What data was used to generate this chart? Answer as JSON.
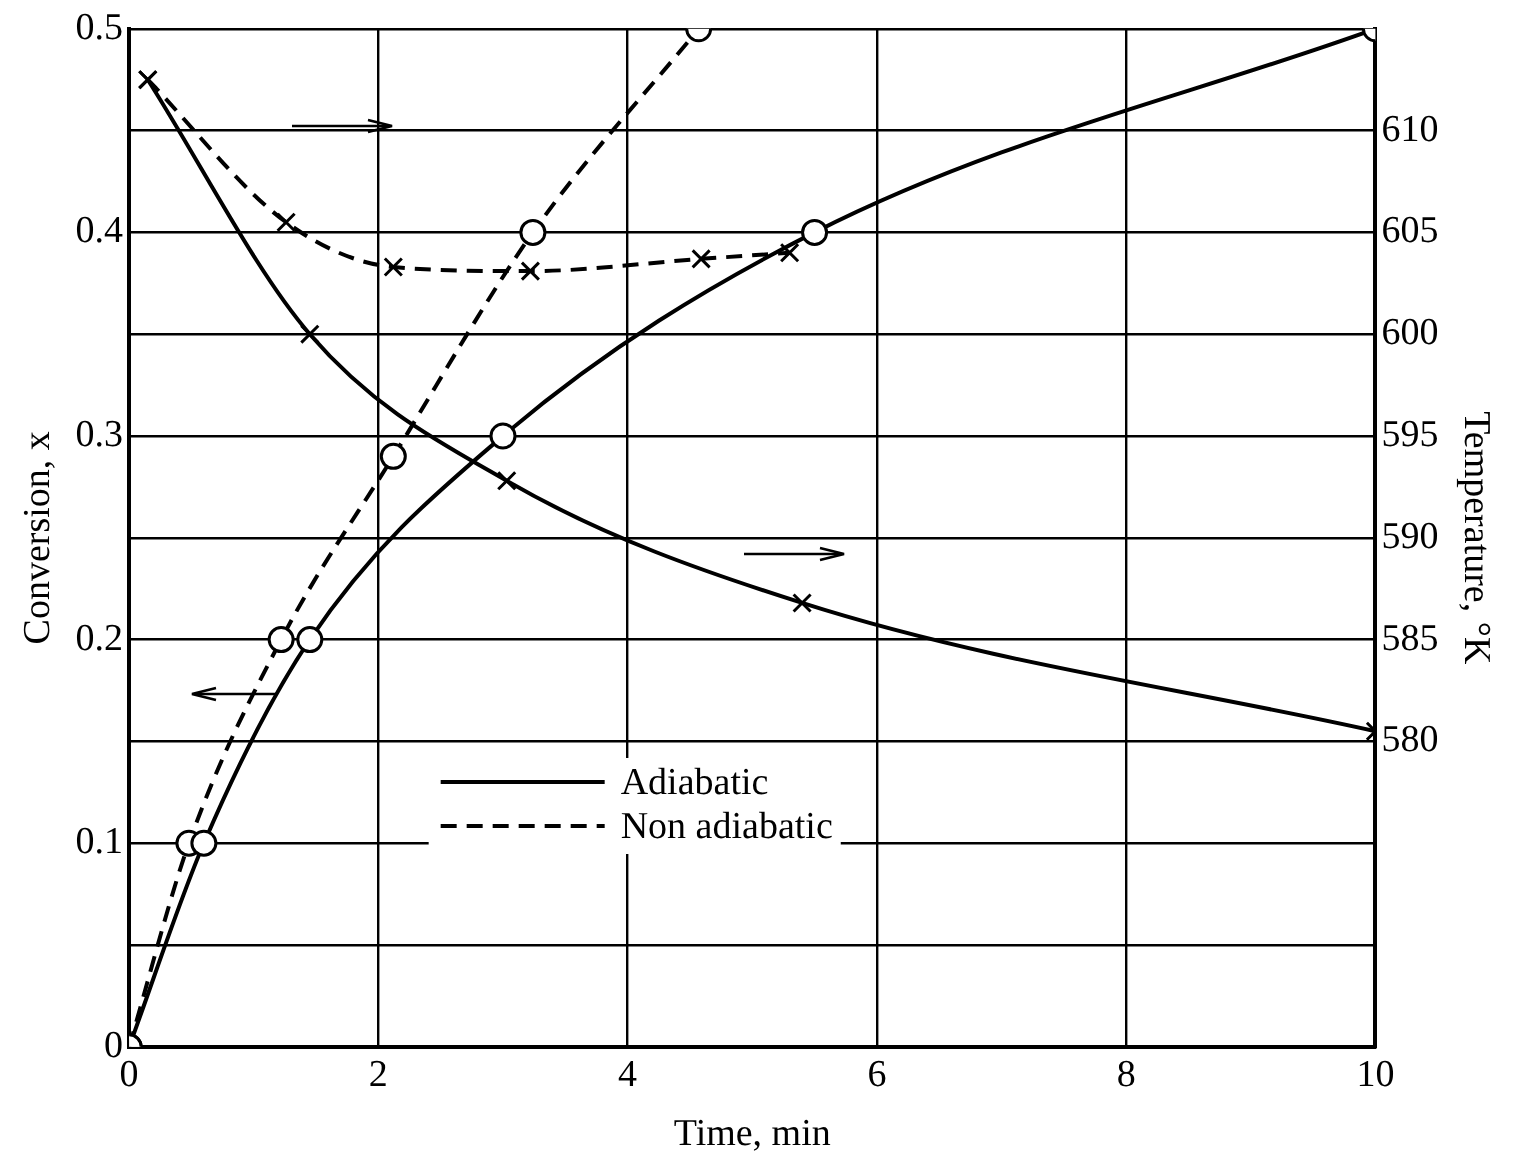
{
  "chart_data": {
    "type": "line",
    "xlabel": "Time, min",
    "ylabel": "Conversion, x",
    "y2label": "Temperature, °K",
    "xlim": [
      0,
      10
    ],
    "xticks": [
      0,
      2,
      4,
      6,
      8,
      10
    ],
    "ylim": [
      0,
      0.5
    ],
    "yticks": [
      0,
      {
        "value": 0.05,
        "label": null
      },
      0.1,
      {
        "value": 0.15,
        "label": null
      },
      0.2,
      {
        "value": 0.25,
        "label": null
      },
      0.3,
      {
        "value": 0.35,
        "label": null
      },
      0.4,
      {
        "value": 0.45,
        "label": null
      },
      0.5
    ],
    "y2lim": [
      565,
      615
    ],
    "y2ticks": [
      580,
      585,
      590,
      595,
      600,
      605,
      610
    ],
    "grid": true,
    "legend": "bottom left",
    "series": [
      {
        "name": "Adiabatic",
        "color": "#000000",
        "line_style": "solid",
        "marker": "circle",
        "x": [
          0,
          0.6,
          1.45,
          3.0,
          5.5,
          10
        ],
        "values": [
          0,
          0.1,
          0.2,
          0.3,
          0.4,
          0.5
        ]
      },
      {
        "name": "Non adiabatic",
        "color": "#000000",
        "line_style": "dashed",
        "marker": "circle",
        "x": [
          0,
          0.48,
          1.22,
          2.12,
          3.24,
          4.57
        ],
        "values": [
          0,
          0.1,
          0.2,
          0.29,
          0.4,
          0.5
        ]
      },
      {
        "color": "#000000",
        "axis": "y2",
        "line_style": "solid",
        "marker": "cross",
        "x": [
          0.15,
          1.45,
          3.03,
          5.4,
          10
        ],
        "values": [
          612.5,
          600,
          592.8,
          586.8,
          580.5
        ]
      },
      {
        "color": "#000000",
        "axis": "y2",
        "line_style": "dashed",
        "marker": "cross",
        "x": [
          0.15,
          1.26,
          2.12,
          3.22,
          4.59,
          5.3
        ],
        "values": [
          612.5,
          605.5,
          603.3,
          603.1,
          603.7,
          604
        ]
      }
    ]
  }
}
